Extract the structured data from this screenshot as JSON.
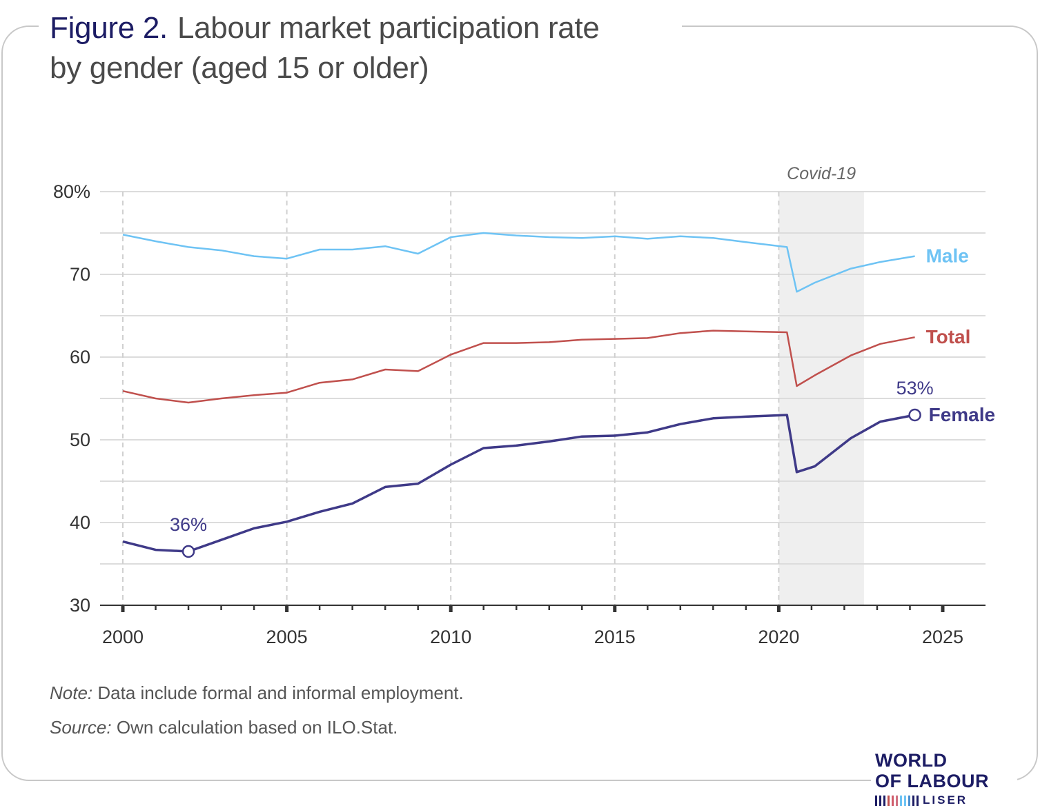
{
  "title": {
    "figure_label": "Figure 2.",
    "line1": "Labour market participation rate",
    "line2": "by gender (aged 15 or older)"
  },
  "notes": {
    "note_label": "Note:",
    "note_text": " Data include formal and informal employment.",
    "source_label": "Source:",
    "source_text": " Own calculation based on ILO.Stat."
  },
  "logo": {
    "line1": "WORLD",
    "line2": "OF LABOUR",
    "line3": "LISER"
  },
  "colors": {
    "male": "#6ec3f4",
    "total": "#c0504d",
    "female": "#3f3a88",
    "grid": "#dcdcdc",
    "covid_band": "#efefef"
  },
  "chart_data": {
    "type": "line",
    "xlim": [
      2000,
      2025
    ],
    "ylim": [
      30,
      80
    ],
    "x_ticks": [
      2000,
      2005,
      2010,
      2015,
      2020,
      2025
    ],
    "y_ticks": [
      30,
      40,
      50,
      60,
      70,
      80
    ],
    "y_tick_labels": [
      "30",
      "40",
      "50",
      "60",
      "70",
      "80%"
    ],
    "grid": true,
    "x": [
      2000,
      2001,
      2002,
      2003,
      2004,
      2005,
      2006,
      2007,
      2008,
      2009,
      2010,
      2011,
      2012,
      2013,
      2014,
      2015,
      2016,
      2017,
      2018,
      2019,
      2020.25,
      2020.55,
      2021.1,
      2022.2,
      2023.1,
      2024.15
    ],
    "series": [
      {
        "name": "Male",
        "values": [
          74.8,
          74.0,
          73.3,
          72.9,
          72.2,
          71.9,
          73.0,
          73.0,
          73.4,
          72.5,
          74.5,
          75.0,
          74.7,
          74.5,
          74.4,
          74.6,
          74.3,
          74.6,
          74.4,
          73.9,
          73.3,
          67.9,
          69.0,
          70.7,
          71.5,
          72.2
        ]
      },
      {
        "name": "Total",
        "values": [
          55.9,
          55.0,
          54.5,
          55.0,
          55.4,
          55.7,
          56.9,
          57.3,
          58.5,
          58.3,
          60.3,
          61.7,
          61.7,
          61.8,
          62.1,
          62.2,
          62.3,
          62.9,
          63.2,
          63.1,
          63.0,
          56.5,
          57.8,
          60.2,
          61.6,
          62.4
        ]
      },
      {
        "name": "Female",
        "values": [
          37.7,
          36.7,
          36.5,
          37.9,
          39.3,
          40.1,
          41.3,
          42.3,
          44.3,
          44.7,
          47.0,
          49.0,
          49.3,
          49.8,
          50.4,
          50.5,
          50.9,
          51.9,
          52.6,
          52.8,
          53.0,
          46.1,
          46.8,
          50.2,
          52.2,
          53.0
        ]
      }
    ],
    "covid_band": {
      "label": "Covid-19",
      "x_start": 2020.0,
      "x_end": 2022.6
    },
    "annotations": [
      {
        "series": "Female",
        "x": 2002,
        "y": 36.5,
        "text": "36%"
      },
      {
        "series": "Female",
        "x": 2024.15,
        "y": 53.0,
        "text": "53%"
      }
    ]
  }
}
